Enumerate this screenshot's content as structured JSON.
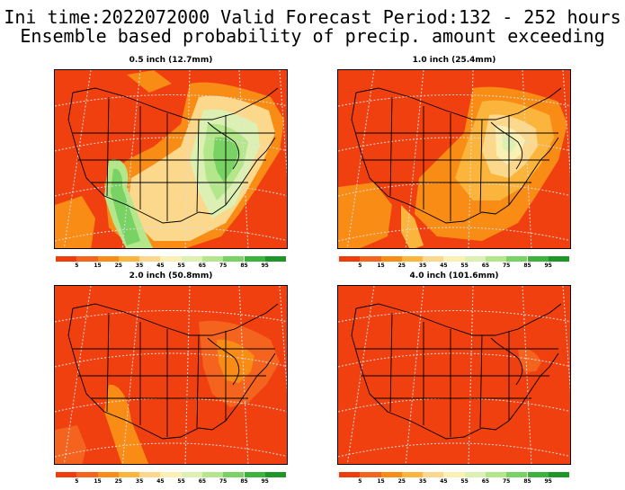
{
  "title_line1": "Ini time:2022072000  Valid Forecast Period:132 - 252 hours",
  "title_line2": "Ensemble based probability of precip. amount exceeding",
  "panels": [
    {
      "label": "0.5 inch (12.7mm)"
    },
    {
      "label": "1.0 inch (25.4mm)"
    },
    {
      "label": "2.0 inch (50.8mm)"
    },
    {
      "label": "4.0 inch (101.6mm)"
    }
  ],
  "colorbar": {
    "ticks": [
      "5",
      "15",
      "25",
      "35",
      "45",
      "55",
      "65",
      "75",
      "85",
      "95"
    ],
    "colors": [
      "#f03c0a",
      "#f4641e",
      "#f88c14",
      "#fbb43c",
      "#fbd88c",
      "#fbf0b4",
      "#dcf0b4",
      "#b4e68c",
      "#78d264",
      "#3cb43c",
      "#1e9628"
    ]
  },
  "map": {
    "base_color": "#f04010",
    "boundary_color": "#000000",
    "grid_color": "#dddddd"
  }
}
